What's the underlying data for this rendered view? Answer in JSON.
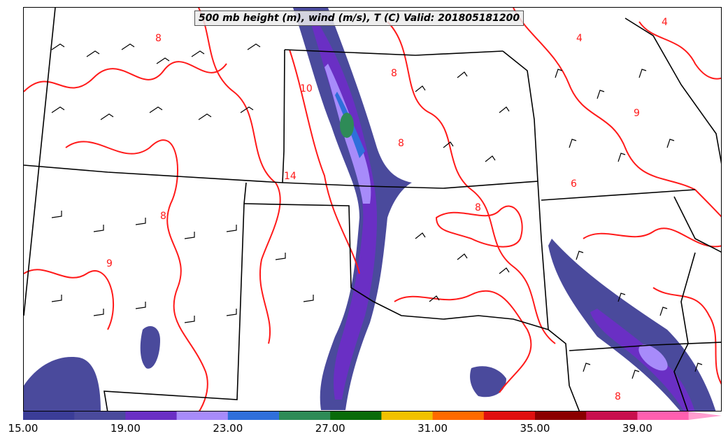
{
  "map": {
    "title": "500 mb height (m), wind (m/s), T (C) Valid: 201805181200",
    "contour_labels": [
      "8",
      "10",
      "14",
      "8",
      "8",
      "8",
      "9",
      "8",
      "4",
      "4",
      "6",
      "9",
      "8"
    ],
    "colors": {
      "contour": "#ff1a1a",
      "borders": "#000000",
      "barbs": "#000000"
    }
  },
  "colorbar": {
    "tick_labels": [
      "15.00",
      "19.00",
      "23.00",
      "27.00",
      "31.00",
      "35.00",
      "39.00"
    ],
    "colors": [
      "#3b3d97",
      "#4a4a9c",
      "#6a2fc4",
      "#a78bfa",
      "#2f6fdb",
      "#2e8b57",
      "#0a6b0a",
      "#f2c100",
      "#ff6a00",
      "#e01010",
      "#8b0000",
      "#c8104e",
      "#ff5fb0",
      "#ff9ed0"
    ]
  }
}
